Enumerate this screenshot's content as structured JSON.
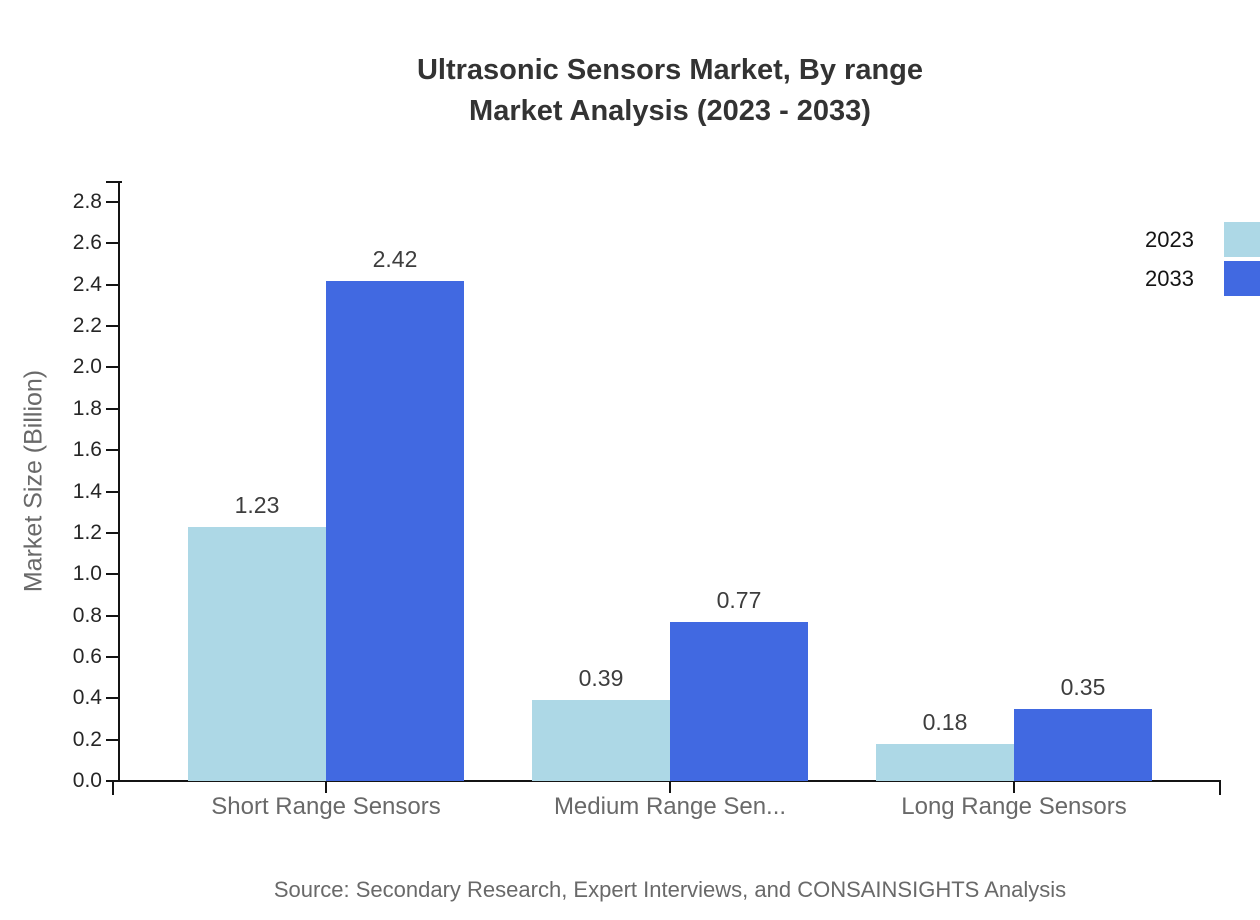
{
  "title": {
    "line1": "Ultrasonic Sensors Market, By range",
    "line2": "Market Analysis (2023 - 2033)"
  },
  "source_note": "Source: Secondary Research, Expert Interviews, and CONSAINSIGHTS Analysis",
  "legend": {
    "items": [
      {
        "label": "2023",
        "color": "#ADD8E6"
      },
      {
        "label": "2033",
        "color": "#4169E1"
      }
    ]
  },
  "chart_data": {
    "type": "bar",
    "title": "Ultrasonic Sensors Market, By range Market Analysis (2023 - 2033)",
    "categories": [
      "Short Range Sensors",
      "Medium Range Sen...",
      "Long Range Sensors"
    ],
    "series": [
      {
        "name": "2023",
        "color": "#ADD8E6",
        "values": [
          1.23,
          0.39,
          0.18
        ]
      },
      {
        "name": "2033",
        "color": "#4169E1",
        "values": [
          2.42,
          0.77,
          0.35
        ]
      }
    ],
    "xlabel": "",
    "ylabel": "Market Size (Billion)",
    "ylim": [
      0,
      2.8
    ],
    "ytick_step": 0.2,
    "ytick_labels": [
      "0.0",
      "0.2",
      "0.4",
      "0.6",
      "0.8",
      "1.0",
      "1.2",
      "1.4",
      "1.6",
      "1.8",
      "2.0",
      "2.2",
      "2.4",
      "2.6",
      "2.8"
    ],
    "value_labels": [
      "1.23",
      "2.42",
      "0.39",
      "0.77",
      "0.18",
      "0.35"
    ],
    "grid": false,
    "legend_position": "top-right"
  },
  "colors": {
    "background": "#ffffff",
    "axis": "#141414",
    "tick_label": "#262626",
    "category_label": "#696969",
    "value_label": "#3d3d3d",
    "title_text": "#333333",
    "muted_text": "#696969",
    "series_2023": "#ADD8E6",
    "series_2033": "#4169E1"
  }
}
